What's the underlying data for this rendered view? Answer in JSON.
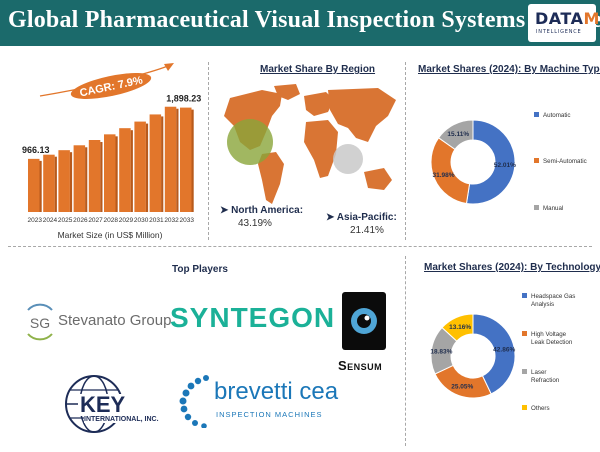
{
  "header": {
    "title": "Global Pharmaceutical Visual Inspection Systems Market",
    "logo_main": "DATA",
    "logo_accent": "M",
    "logo_sub": "INTELLIGENCE"
  },
  "market_size": {
    "cagr_label": "CAGR: 7.9%",
    "caption": "Market Size (in US$ Million)",
    "first_value_label": "966.13",
    "last_value_label": "1,898.23",
    "bar_color": "#e2762b"
  },
  "region": {
    "title": "Market Share By Region",
    "north_america_name": "North America:",
    "north_america_value": "43.19%",
    "asia_pacific_name": "Asia-Pacific:",
    "asia_pacific_value": "21.41%"
  },
  "players": {
    "title": "Top Players",
    "stevanato": "Stevanato Group",
    "stevanato_badge": "SG",
    "syntegon": "SYNTEGON",
    "sensum": "Sensum",
    "key": "KEY",
    "key_sub": "INTERNATIONAL, INC.",
    "brevetti": "brevetti cea",
    "brevetti_sub": "INSPECTION MACHINES"
  },
  "chart_data": [
    {
      "type": "bar",
      "title": "",
      "xlabel": "Market Size (in US$ Million)",
      "ylabel": "",
      "categories": [
        "2023",
        "2024",
        "2025",
        "2026",
        "2027",
        "2028",
        "2029",
        "2030",
        "2031",
        "2032",
        "2033"
      ],
      "values": [
        966.13,
        1042,
        1124,
        1213,
        1309,
        1412,
        1524,
        1644,
        1774,
        1914,
        1898.23
      ],
      "ylim": [
        0,
        2000
      ],
      "annotations": [
        "966.13",
        "1,898.23",
        "CAGR: 7.9%"
      ],
      "grid": false
    },
    {
      "type": "pie",
      "title": "Market Shares (2024): By Machine Type",
      "labels": [
        "Automatic",
        "Semi-Automatic",
        "Manual"
      ],
      "values": [
        52.01,
        31.98,
        15.11
      ],
      "value_labels": [
        "52.01%",
        "31.98%",
        "15.11%"
      ],
      "colors": [
        "#4472c4",
        "#e2762b",
        "#a5a5a5"
      ],
      "legend": "right"
    },
    {
      "type": "pie",
      "title": "Market Shares (2024): By Technology",
      "labels": [
        "Headspace Gas Analysis",
        "High Voltage Leak Detection",
        "Laser Refraction",
        "Others"
      ],
      "values": [
        42.86,
        25.05,
        18.83,
        13.16
      ],
      "value_labels": [
        "42.86%",
        "25.05%",
        "18.83%",
        "13.16%"
      ],
      "colors": [
        "#4472c4",
        "#e2762b",
        "#a5a5a5",
        "#ffc000"
      ],
      "legend": "right"
    }
  ]
}
